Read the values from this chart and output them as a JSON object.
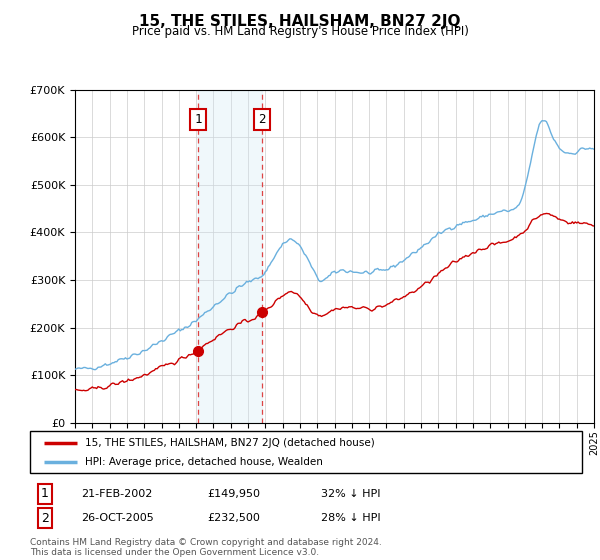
{
  "title": "15, THE STILES, HAILSHAM, BN27 2JQ",
  "subtitle": "Price paid vs. HM Land Registry's House Price Index (HPI)",
  "legend_line1": "15, THE STILES, HAILSHAM, BN27 2JQ (detached house)",
  "legend_line2": "HPI: Average price, detached house, Wealden",
  "transaction1_date": "21-FEB-2002",
  "transaction1_price": "£149,950",
  "transaction1_hpi": "32% ↓ HPI",
  "transaction1_year": 2002.12,
  "transaction1_value": 149950,
  "transaction2_date": "26-OCT-2005",
  "transaction2_price": "£232,500",
  "transaction2_hpi": "28% ↓ HPI",
  "transaction2_year": 2005.82,
  "transaction2_value": 232500,
  "footer": "Contains HM Land Registry data © Crown copyright and database right 2024.\nThis data is licensed under the Open Government Licence v3.0.",
  "hpi_color": "#6ab0de",
  "price_color": "#cc0000",
  "marker_color": "#cc0000",
  "shade_color": "#d0e8f5",
  "dashed_color": "#dd4444",
  "ylim_max": 700000,
  "ylim_min": 0,
  "year_start": 1995,
  "year_end": 2025,
  "hpi_keypoints_x": [
    1995,
    1996,
    1997,
    1998,
    1999,
    2000,
    2001,
    2002,
    2003,
    2004,
    2005,
    2006,
    2007,
    2007.5,
    2008,
    2008.5,
    2009,
    2010,
    2011,
    2012,
    2013,
    2014,
    2015,
    2016,
    2017,
    2018,
    2019,
    2020,
    2021,
    2022,
    2022.5,
    2023,
    2024,
    2025
  ],
  "hpi_keypoints_y": [
    112000,
    116000,
    125000,
    138000,
    152000,
    172000,
    193000,
    215000,
    245000,
    272000,
    295000,
    318000,
    375000,
    385000,
    370000,
    340000,
    305000,
    315000,
    318000,
    315000,
    322000,
    342000,
    368000,
    395000,
    415000,
    425000,
    438000,
    445000,
    490000,
    635000,
    610000,
    578000,
    570000,
    575000
  ],
  "price_keypoints_x": [
    1995,
    1996,
    1997,
    1998,
    1999,
    2000,
    2001,
    2002,
    2003,
    2004,
    2005,
    2006,
    2007,
    2007.5,
    2008,
    2009,
    2010,
    2011,
    2012,
    2013,
    2014,
    2015,
    2016,
    2017,
    2018,
    2019,
    2020,
    2021,
    2022,
    2023,
    2024,
    2025
  ],
  "price_keypoints_y": [
    68000,
    70000,
    78000,
    88000,
    100000,
    116000,
    132000,
    152000,
    176000,
    198000,
    215000,
    235000,
    268000,
    276000,
    265000,
    228000,
    238000,
    242000,
    240000,
    248000,
    265000,
    285000,
    312000,
    338000,
    358000,
    372000,
    382000,
    405000,
    438000,
    428000,
    420000,
    415000
  ]
}
